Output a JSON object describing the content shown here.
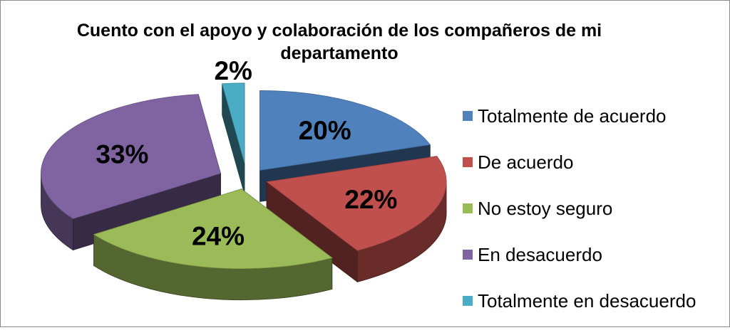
{
  "chart_data": {
    "type": "pie",
    "title": "Cuento con el apoyo y colaboración de los compañeros de mi departamento",
    "categories": [
      "Totalmente de acuerdo",
      "De acuerdo",
      "No estoy seguro",
      "En desacuerdo",
      "Totalmente en desacuerdo"
    ],
    "values": [
      20,
      22,
      24,
      33,
      2
    ],
    "labels": [
      "20%",
      "22%",
      "24%",
      "33%",
      "2%"
    ],
    "colors": [
      "#4f81bd",
      "#c0504d",
      "#9bbb59",
      "#8064a2",
      "#4bacc6"
    ],
    "legend_position": "right",
    "style": "3d-exploded"
  }
}
